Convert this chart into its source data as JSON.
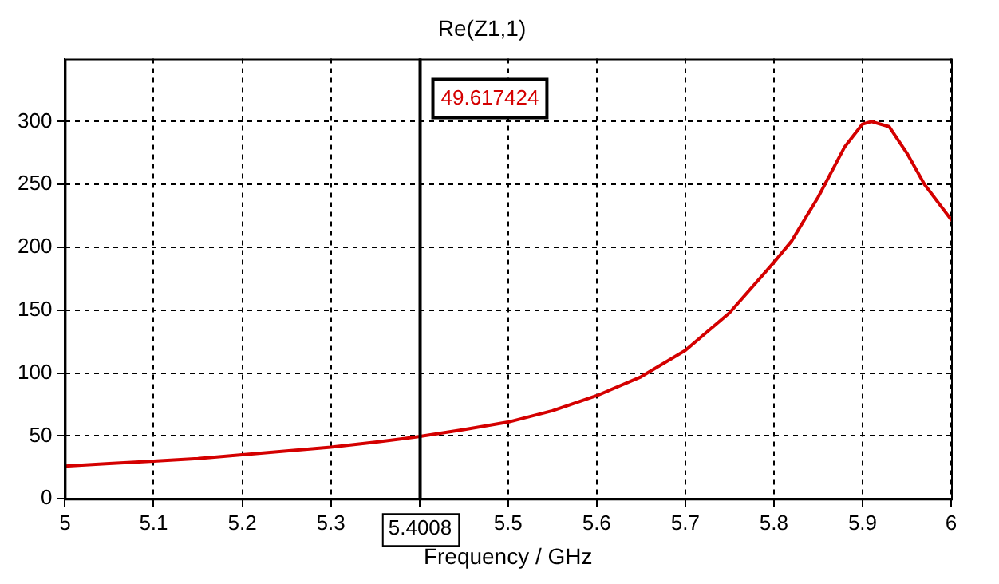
{
  "chart_data": {
    "type": "line",
    "title": "Re(Z1,1)",
    "xlabel": "Frequency / GHz",
    "x": [
      5,
      5.05,
      5.1,
      5.15,
      5.2,
      5.25,
      5.3,
      5.35,
      5.4008,
      5.45,
      5.5,
      5.55,
      5.6,
      5.65,
      5.7,
      5.75,
      5.8,
      5.82,
      5.85,
      5.88,
      5.9,
      5.91,
      5.93,
      5.95,
      5.97,
      6
    ],
    "series": [
      {
        "color": "#d40000",
        "values": [
          26,
          28,
          30,
          32,
          35,
          38,
          41,
          45,
          49.6,
          55,
          61,
          70,
          82,
          97,
          118,
          148,
          188,
          205,
          240,
          280,
          298,
          300,
          296,
          275,
          250,
          222
        ]
      }
    ],
    "xlim": [
      5,
      6
    ],
    "xticks": [
      5,
      5.1,
      5.2,
      5.3,
      {
        "value": 5.4,
        "label": null
      },
      5.5,
      5.6,
      5.7,
      5.8,
      5.9,
      6
    ],
    "ylim": [
      0,
      350
    ],
    "yticks": [
      0,
      50,
      100,
      150,
      200,
      250,
      300
    ],
    "grid": true,
    "legend": false,
    "marker": "none",
    "line_style": "solid",
    "ref_lines": [
      {
        "axis": "x",
        "value": 5.4008,
        "label": "5.4008",
        "color": "#000000"
      }
    ],
    "annotations": [
      "49.617424"
    ]
  }
}
